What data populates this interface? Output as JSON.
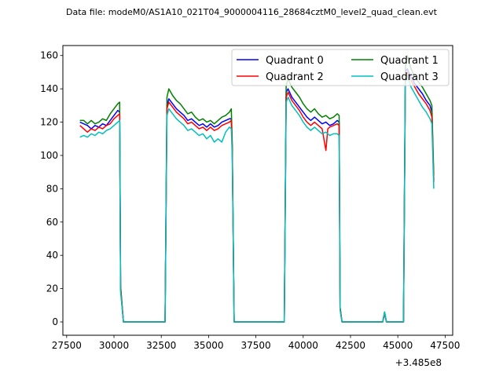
{
  "title": "Data file: modeM0/AS1A10_021T04_9000004116_28684cztM0_level2_quad_clean.evt",
  "chart_data": {
    "type": "line",
    "title": "Data file: modeM0/AS1A10_021T04_9000004116_28684cztM0_level2_quad_clean.evt",
    "xlabel": "",
    "ylabel": "",
    "x_offset_label": "+3.485e8",
    "xlim": [
      27300,
      47900
    ],
    "ylim": [
      -8,
      166
    ],
    "xticks": [
      27500,
      30000,
      32500,
      35000,
      37500,
      40000,
      42500,
      45000,
      47500
    ],
    "xtick_labels": [
      "27500",
      "30000",
      "32500",
      "35000",
      "37500",
      "40000",
      "42500",
      "45000",
      "47500"
    ],
    "yticks": [
      0,
      20,
      40,
      60,
      80,
      100,
      120,
      140,
      160
    ],
    "ytick_labels": [
      "0",
      "20",
      "40",
      "60",
      "80",
      "100",
      "120",
      "140",
      "160"
    ],
    "grid": false,
    "legend": {
      "placement": "top-right",
      "columns": 2
    },
    "series": [
      {
        "name": "Quadrant 0",
        "color": "#0000ff",
        "points": [
          [
            28200,
            120
          ],
          [
            28400,
            119
          ],
          [
            28600,
            118
          ],
          [
            28800,
            116
          ],
          [
            29000,
            118
          ],
          [
            29200,
            117
          ],
          [
            29400,
            119
          ],
          [
            29600,
            118
          ],
          [
            29800,
            121
          ],
          [
            30000,
            124
          ],
          [
            30200,
            127
          ],
          [
            30300,
            126
          ],
          [
            30350,
            20
          ],
          [
            30500,
            0
          ],
          [
            32700,
            0
          ],
          [
            32800,
            130
          ],
          [
            32900,
            134
          ],
          [
            33100,
            131
          ],
          [
            33300,
            128
          ],
          [
            33500,
            126
          ],
          [
            33700,
            124
          ],
          [
            33900,
            121
          ],
          [
            34100,
            122
          ],
          [
            34300,
            120
          ],
          [
            34500,
            118
          ],
          [
            34700,
            119
          ],
          [
            34900,
            117
          ],
          [
            35100,
            119
          ],
          [
            35300,
            117
          ],
          [
            35500,
            118
          ],
          [
            35700,
            120
          ],
          [
            35900,
            121
          ],
          [
            36100,
            122
          ],
          [
            36200,
            122
          ],
          [
            36250,
            105
          ],
          [
            36350,
            0
          ],
          [
            39000,
            0
          ],
          [
            39100,
            138
          ],
          [
            39200,
            140
          ],
          [
            39400,
            135
          ],
          [
            39600,
            132
          ],
          [
            39800,
            129
          ],
          [
            40000,
            126
          ],
          [
            40200,
            123
          ],
          [
            40400,
            121
          ],
          [
            40600,
            123
          ],
          [
            40800,
            121
          ],
          [
            41000,
            119
          ],
          [
            41200,
            120
          ],
          [
            41400,
            118
          ],
          [
            41600,
            119
          ],
          [
            41800,
            121
          ],
          [
            41900,
            120
          ],
          [
            41950,
            8
          ],
          [
            42050,
            0
          ],
          [
            44200,
            0
          ],
          [
            44300,
            5
          ],
          [
            44400,
            0
          ],
          [
            45300,
            0
          ],
          [
            45400,
            150
          ],
          [
            45500,
            152
          ],
          [
            45700,
            147
          ],
          [
            45900,
            143
          ],
          [
            46100,
            140
          ],
          [
            46300,
            137
          ],
          [
            46500,
            133
          ],
          [
            46700,
            130
          ],
          [
            46800,
            126
          ],
          [
            46900,
            85
          ]
        ]
      },
      {
        "name": "Quadrant 1",
        "color": "#008000",
        "points": [
          [
            28200,
            121
          ],
          [
            28400,
            121
          ],
          [
            28600,
            119
          ],
          [
            28800,
            121
          ],
          [
            29000,
            119
          ],
          [
            29200,
            120
          ],
          [
            29400,
            122
          ],
          [
            29600,
            121
          ],
          [
            29800,
            125
          ],
          [
            30000,
            128
          ],
          [
            30200,
            131
          ],
          [
            30300,
            132
          ],
          [
            30350,
            22
          ],
          [
            30500,
            0
          ],
          [
            32700,
            0
          ],
          [
            32800,
            135
          ],
          [
            32900,
            140
          ],
          [
            33100,
            136
          ],
          [
            33300,
            133
          ],
          [
            33500,
            131
          ],
          [
            33700,
            128
          ],
          [
            33900,
            125
          ],
          [
            34100,
            126
          ],
          [
            34300,
            123
          ],
          [
            34500,
            121
          ],
          [
            34700,
            122
          ],
          [
            34900,
            120
          ],
          [
            35100,
            121
          ],
          [
            35300,
            119
          ],
          [
            35500,
            121
          ],
          [
            35700,
            123
          ],
          [
            35900,
            124
          ],
          [
            36100,
            126
          ],
          [
            36200,
            128
          ],
          [
            36250,
            108
          ],
          [
            36350,
            0
          ],
          [
            39000,
            0
          ],
          [
            39100,
            142
          ],
          [
            39200,
            146
          ],
          [
            39400,
            141
          ],
          [
            39600,
            138
          ],
          [
            39800,
            135
          ],
          [
            40000,
            131
          ],
          [
            40200,
            128
          ],
          [
            40400,
            126
          ],
          [
            40600,
            128
          ],
          [
            40800,
            125
          ],
          [
            41000,
            123
          ],
          [
            41200,
            124
          ],
          [
            41400,
            122
          ],
          [
            41600,
            123
          ],
          [
            41800,
            125
          ],
          [
            41900,
            124
          ],
          [
            41950,
            9
          ],
          [
            42050,
            0
          ],
          [
            44200,
            0
          ],
          [
            44300,
            6
          ],
          [
            44400,
            0
          ],
          [
            45300,
            0
          ],
          [
            45400,
            153
          ],
          [
            45500,
            160
          ],
          [
            45700,
            152
          ],
          [
            45900,
            147
          ],
          [
            46100,
            144
          ],
          [
            46300,
            141
          ],
          [
            46500,
            137
          ],
          [
            46700,
            133
          ],
          [
            46800,
            130
          ],
          [
            46900,
            88
          ]
        ]
      },
      {
        "name": "Quadrant 2",
        "color": "#ff0000",
        "points": [
          [
            28200,
            118
          ],
          [
            28400,
            116
          ],
          [
            28600,
            114
          ],
          [
            28800,
            116
          ],
          [
            29000,
            115
          ],
          [
            29200,
            117
          ],
          [
            29400,
            116
          ],
          [
            29600,
            118
          ],
          [
            29800,
            119
          ],
          [
            30000,
            122
          ],
          [
            30200,
            124
          ],
          [
            30300,
            125
          ],
          [
            30350,
            20
          ],
          [
            30500,
            0
          ],
          [
            32700,
            0
          ],
          [
            32800,
            128
          ],
          [
            32900,
            132
          ],
          [
            33100,
            129
          ],
          [
            33300,
            126
          ],
          [
            33500,
            124
          ],
          [
            33700,
            122
          ],
          [
            33900,
            119
          ],
          [
            34100,
            120
          ],
          [
            34300,
            118
          ],
          [
            34500,
            116
          ],
          [
            34700,
            117
          ],
          [
            34900,
            115
          ],
          [
            35100,
            117
          ],
          [
            35300,
            115
          ],
          [
            35500,
            116
          ],
          [
            35700,
            118
          ],
          [
            35900,
            119
          ],
          [
            36100,
            120
          ],
          [
            36200,
            121
          ],
          [
            36250,
            104
          ],
          [
            36350,
            0
          ],
          [
            39000,
            0
          ],
          [
            39100,
            135
          ],
          [
            39200,
            138
          ],
          [
            39400,
            133
          ],
          [
            39600,
            130
          ],
          [
            39800,
            127
          ],
          [
            40000,
            123
          ],
          [
            40200,
            120
          ],
          [
            40400,
            118
          ],
          [
            40600,
            120
          ],
          [
            40800,
            118
          ],
          [
            41000,
            116
          ],
          [
            41200,
            103
          ],
          [
            41300,
            116
          ],
          [
            41400,
            117
          ],
          [
            41600,
            118
          ],
          [
            41800,
            119
          ],
          [
            41900,
            118
          ],
          [
            41950,
            8
          ],
          [
            42050,
            0
          ],
          [
            44200,
            0
          ],
          [
            44300,
            5
          ],
          [
            44400,
            0
          ],
          [
            45300,
            0
          ],
          [
            45400,
            147
          ],
          [
            45500,
            150
          ],
          [
            45700,
            145
          ],
          [
            45900,
            141
          ],
          [
            46100,
            137
          ],
          [
            46300,
            134
          ],
          [
            46500,
            131
          ],
          [
            46700,
            127
          ],
          [
            46800,
            123
          ],
          [
            46900,
            84
          ]
        ]
      },
      {
        "name": "Quadrant 3",
        "color": "#00bfbf",
        "points": [
          [
            28200,
            111
          ],
          [
            28400,
            112
          ],
          [
            28600,
            111
          ],
          [
            28800,
            113
          ],
          [
            29000,
            112
          ],
          [
            29200,
            114
          ],
          [
            29400,
            113
          ],
          [
            29600,
            115
          ],
          [
            29800,
            116
          ],
          [
            30000,
            118
          ],
          [
            30200,
            120
          ],
          [
            30300,
            121
          ],
          [
            30350,
            18
          ],
          [
            30500,
            0
          ],
          [
            32700,
            0
          ],
          [
            32800,
            124
          ],
          [
            32900,
            128
          ],
          [
            33100,
            125
          ],
          [
            33300,
            122
          ],
          [
            33500,
            120
          ],
          [
            33700,
            118
          ],
          [
            33900,
            115
          ],
          [
            34100,
            116
          ],
          [
            34300,
            114
          ],
          [
            34500,
            112
          ],
          [
            34700,
            113
          ],
          [
            34900,
            110
          ],
          [
            35100,
            112
          ],
          [
            35300,
            108
          ],
          [
            35500,
            110
          ],
          [
            35700,
            108
          ],
          [
            35900,
            114
          ],
          [
            36100,
            117
          ],
          [
            36200,
            116
          ],
          [
            36250,
            100
          ],
          [
            36350,
            0
          ],
          [
            39000,
            0
          ],
          [
            39100,
            132
          ],
          [
            39200,
            135
          ],
          [
            39400,
            130
          ],
          [
            39600,
            127
          ],
          [
            39800,
            124
          ],
          [
            40000,
            120
          ],
          [
            40200,
            117
          ],
          [
            40400,
            115
          ],
          [
            40600,
            117
          ],
          [
            40800,
            115
          ],
          [
            41000,
            113
          ],
          [
            41200,
            114
          ],
          [
            41400,
            112
          ],
          [
            41600,
            113
          ],
          [
            41800,
            113
          ],
          [
            41900,
            112
          ],
          [
            41950,
            7
          ],
          [
            42050,
            0
          ],
          [
            44200,
            0
          ],
          [
            44300,
            6
          ],
          [
            44400,
            0
          ],
          [
            45300,
            0
          ],
          [
            45400,
            144
          ],
          [
            45500,
            148
          ],
          [
            45700,
            141
          ],
          [
            45900,
            137
          ],
          [
            46100,
            133
          ],
          [
            46300,
            129
          ],
          [
            46500,
            126
          ],
          [
            46700,
            122
          ],
          [
            46800,
            119
          ],
          [
            46900,
            80
          ]
        ]
      }
    ]
  }
}
